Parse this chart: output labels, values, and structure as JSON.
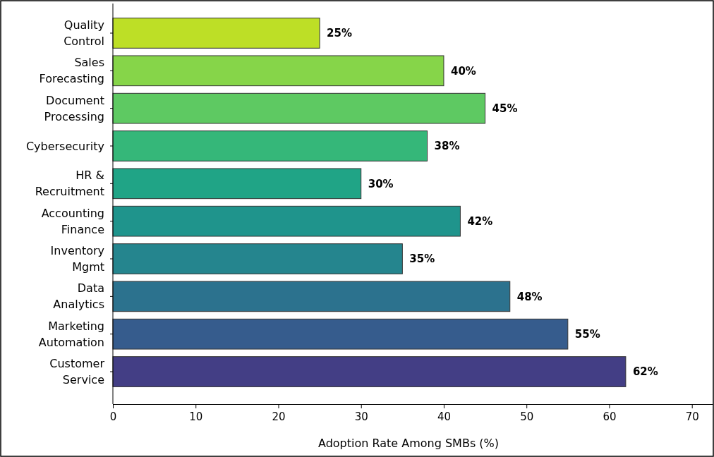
{
  "chart_data": {
    "type": "bar",
    "orientation": "horizontal",
    "xlabel": "Adoption Rate Among SMBs (%)",
    "categories": [
      "Quality\nControl",
      "Sales\nForecasting",
      "Document\nProcessing",
      "Cybersecurity",
      "HR &\nRecruitment",
      "Accounting\nFinance",
      "Inventory\nMgmt",
      "Data\nAnalytics",
      "Marketing\nAutomation",
      "Customer\nService"
    ],
    "values": [
      25,
      40,
      45,
      38,
      30,
      42,
      35,
      48,
      55,
      62
    ],
    "value_labels": [
      "25%",
      "40%",
      "45%",
      "38%",
      "30%",
      "42%",
      "35%",
      "48%",
      "55%",
      "62%"
    ],
    "colors": [
      "#bddf26",
      "#86d549",
      "#5ec962",
      "#35b779",
      "#20a486",
      "#1f948c",
      "#25858e",
      "#2c728e",
      "#365c8d",
      "#433e85"
    ],
    "xlim": [
      0,
      72.5
    ],
    "xticks": [
      0,
      10,
      20,
      30,
      40,
      50,
      60,
      70
    ],
    "grid": false
  }
}
